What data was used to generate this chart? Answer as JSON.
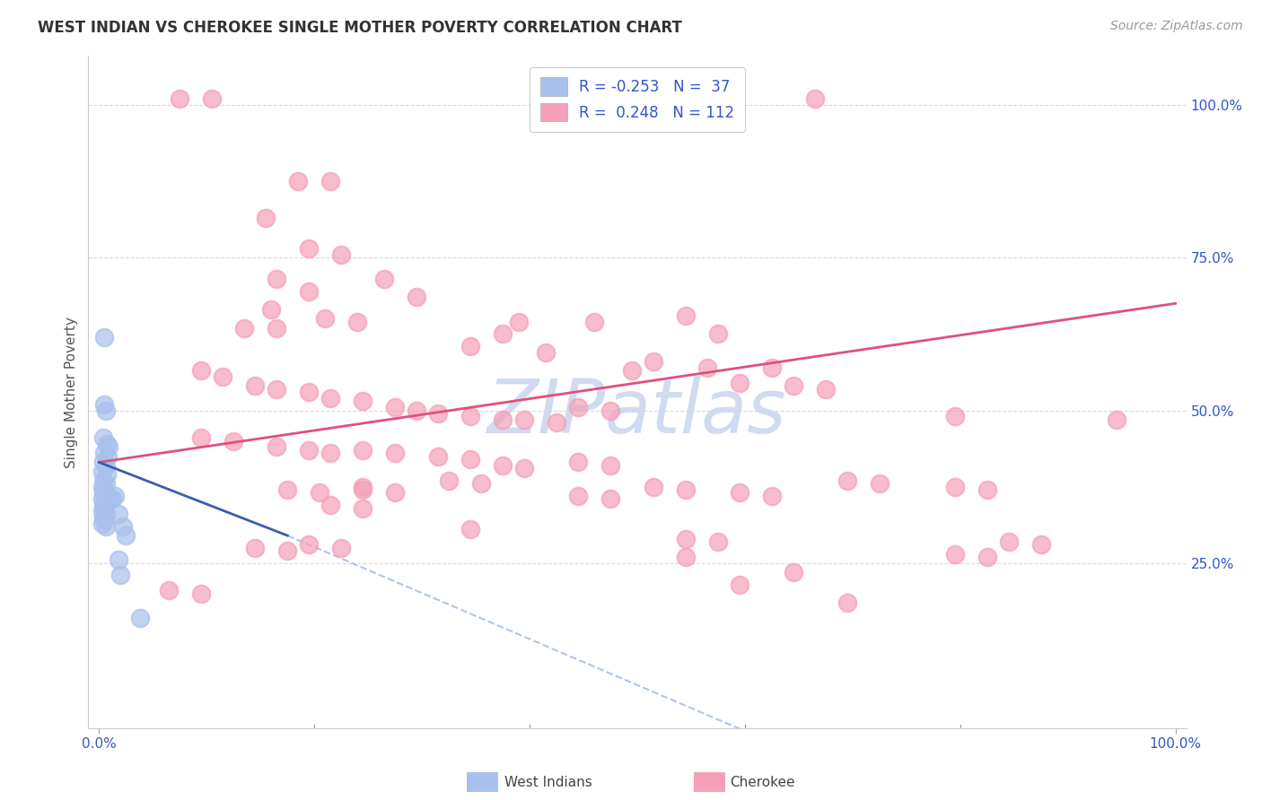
{
  "title": "WEST INDIAN VS CHEROKEE SINGLE MOTHER POVERTY CORRELATION CHART",
  "source": "Source: ZipAtlas.com",
  "ylabel": "Single Mother Poverty",
  "xlim": [
    -0.01,
    1.01
  ],
  "ylim": [
    -0.02,
    1.08
  ],
  "plot_xlim": [
    0.0,
    1.0
  ],
  "plot_ylim": [
    0.0,
    1.05
  ],
  "xtick_positions": [
    0.0,
    1.0
  ],
  "xtick_labels": [
    "0.0%",
    "100.0%"
  ],
  "ytick_positions": [
    0.25,
    0.5,
    0.75,
    1.0
  ],
  "ytick_labels": [
    "25.0%",
    "50.0%",
    "75.0%",
    "100.0%"
  ],
  "background_color": "#ffffff",
  "grid_color": "#d8d8d8",
  "west_indian_color": "#a8c0ec",
  "cherokee_color": "#f5a0b8",
  "west_indian_line_color": "#3a5cb0",
  "cherokee_line_color": "#e0507a",
  "dashed_line_color": "#b0c4e8",
  "legend_text_color": "#3355cc",
  "watermark_color": "#ccd8ee",
  "R_wi": -0.253,
  "N_wi": 37,
  "R_ch": 0.248,
  "N_ch": 112,
  "west_indian_points": [
    [
      0.005,
      0.62
    ],
    [
      0.005,
      0.51
    ],
    [
      0.006,
      0.5
    ],
    [
      0.004,
      0.455
    ],
    [
      0.007,
      0.445
    ],
    [
      0.009,
      0.44
    ],
    [
      0.005,
      0.43
    ],
    [
      0.008,
      0.425
    ],
    [
      0.004,
      0.415
    ],
    [
      0.006,
      0.41
    ],
    [
      0.003,
      0.4
    ],
    [
      0.007,
      0.395
    ],
    [
      0.004,
      0.385
    ],
    [
      0.006,
      0.38
    ],
    [
      0.003,
      0.375
    ],
    [
      0.005,
      0.37
    ],
    [
      0.004,
      0.365
    ],
    [
      0.007,
      0.36
    ],
    [
      0.003,
      0.355
    ],
    [
      0.006,
      0.35
    ],
    [
      0.004,
      0.345
    ],
    [
      0.005,
      0.34
    ],
    [
      0.003,
      0.335
    ],
    [
      0.006,
      0.33
    ],
    [
      0.004,
      0.325
    ],
    [
      0.005,
      0.32
    ],
    [
      0.003,
      0.315
    ],
    [
      0.006,
      0.31
    ],
    [
      0.012,
      0.355
    ],
    [
      0.015,
      0.36
    ],
    [
      0.018,
      0.33
    ],
    [
      0.022,
      0.31
    ],
    [
      0.025,
      0.295
    ],
    [
      0.018,
      0.255
    ],
    [
      0.02,
      0.23
    ],
    [
      0.038,
      0.16
    ],
    [
      0.01,
      0.355
    ]
  ],
  "cherokee_points": [
    [
      0.075,
      1.01
    ],
    [
      0.105,
      1.01
    ],
    [
      0.58,
      1.01
    ],
    [
      0.665,
      1.01
    ],
    [
      0.185,
      0.875
    ],
    [
      0.215,
      0.875
    ],
    [
      0.155,
      0.815
    ],
    [
      0.195,
      0.765
    ],
    [
      0.225,
      0.755
    ],
    [
      0.165,
      0.715
    ],
    [
      0.195,
      0.695
    ],
    [
      0.265,
      0.715
    ],
    [
      0.295,
      0.685
    ],
    [
      0.16,
      0.665
    ],
    [
      0.21,
      0.65
    ],
    [
      0.24,
      0.645
    ],
    [
      0.135,
      0.635
    ],
    [
      0.165,
      0.635
    ],
    [
      0.39,
      0.645
    ],
    [
      0.46,
      0.645
    ],
    [
      0.545,
      0.655
    ],
    [
      0.575,
      0.625
    ],
    [
      0.345,
      0.605
    ],
    [
      0.375,
      0.625
    ],
    [
      0.415,
      0.595
    ],
    [
      0.515,
      0.58
    ],
    [
      0.495,
      0.565
    ],
    [
      0.565,
      0.57
    ],
    [
      0.595,
      0.545
    ],
    [
      0.625,
      0.57
    ],
    [
      0.095,
      0.565
    ],
    [
      0.115,
      0.555
    ],
    [
      0.145,
      0.54
    ],
    [
      0.165,
      0.535
    ],
    [
      0.195,
      0.53
    ],
    [
      0.215,
      0.52
    ],
    [
      0.245,
      0.515
    ],
    [
      0.275,
      0.505
    ],
    [
      0.295,
      0.5
    ],
    [
      0.315,
      0.495
    ],
    [
      0.345,
      0.49
    ],
    [
      0.375,
      0.485
    ],
    [
      0.395,
      0.485
    ],
    [
      0.425,
      0.48
    ],
    [
      0.445,
      0.505
    ],
    [
      0.475,
      0.5
    ],
    [
      0.645,
      0.54
    ],
    [
      0.675,
      0.535
    ],
    [
      0.795,
      0.49
    ],
    [
      0.945,
      0.485
    ],
    [
      0.095,
      0.455
    ],
    [
      0.125,
      0.45
    ],
    [
      0.165,
      0.44
    ],
    [
      0.195,
      0.435
    ],
    [
      0.215,
      0.43
    ],
    [
      0.245,
      0.435
    ],
    [
      0.275,
      0.43
    ],
    [
      0.315,
      0.425
    ],
    [
      0.345,
      0.42
    ],
    [
      0.375,
      0.41
    ],
    [
      0.395,
      0.405
    ],
    [
      0.445,
      0.415
    ],
    [
      0.475,
      0.41
    ],
    [
      0.325,
      0.385
    ],
    [
      0.355,
      0.38
    ],
    [
      0.175,
      0.37
    ],
    [
      0.205,
      0.365
    ],
    [
      0.245,
      0.37
    ],
    [
      0.275,
      0.365
    ],
    [
      0.215,
      0.345
    ],
    [
      0.245,
      0.34
    ],
    [
      0.445,
      0.36
    ],
    [
      0.475,
      0.355
    ],
    [
      0.515,
      0.375
    ],
    [
      0.545,
      0.37
    ],
    [
      0.595,
      0.365
    ],
    [
      0.625,
      0.36
    ],
    [
      0.695,
      0.385
    ],
    [
      0.725,
      0.38
    ],
    [
      0.795,
      0.375
    ],
    [
      0.825,
      0.37
    ],
    [
      0.545,
      0.29
    ],
    [
      0.575,
      0.285
    ],
    [
      0.145,
      0.275
    ],
    [
      0.175,
      0.27
    ],
    [
      0.195,
      0.28
    ],
    [
      0.225,
      0.275
    ],
    [
      0.545,
      0.26
    ],
    [
      0.645,
      0.235
    ],
    [
      0.795,
      0.265
    ],
    [
      0.825,
      0.26
    ],
    [
      0.595,
      0.215
    ],
    [
      0.695,
      0.185
    ],
    [
      0.065,
      0.205
    ],
    [
      0.095,
      0.2
    ],
    [
      0.845,
      0.285
    ],
    [
      0.875,
      0.28
    ],
    [
      0.245,
      0.375
    ],
    [
      0.345,
      0.305
    ]
  ],
  "wi_line_x": [
    0.0,
    0.175
  ],
  "wi_line_y_start": 0.415,
  "wi_line_y_end": 0.295,
  "ch_line_x": [
    0.0,
    1.0
  ],
  "ch_line_y_start": 0.415,
  "ch_line_y_end": 0.675,
  "dash_line_x": [
    0.175,
    0.6
  ],
  "dash_line_y_start": 0.295,
  "dash_line_y_end": -0.025
}
